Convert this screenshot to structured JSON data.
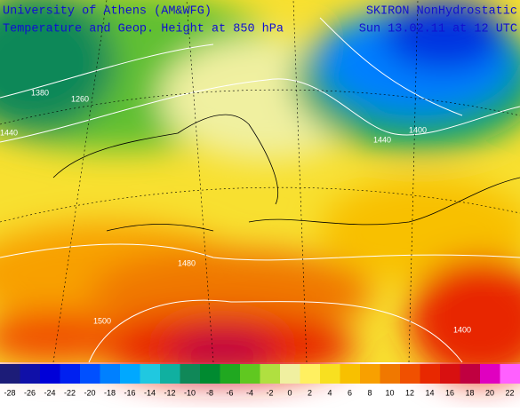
{
  "header": {
    "left_title": "University of Athens (AM&WFG)",
    "left_subtitle": "Temperature and Geop. Height at  850 hPa",
    "right_title": "SKIRON NonHydrostatic",
    "right_subtitle": "Sun 13.02.11 at 12 UTC"
  },
  "contour_labels": [
    "1380",
    "1260",
    "1440",
    "1400",
    "1440",
    "1480",
    "1500",
    "1400"
  ],
  "colorbar": {
    "labels": [
      -28,
      -26,
      -24,
      -22,
      -20,
      -18,
      -16,
      -14,
      -12,
      -10,
      -8,
      -6,
      -4,
      -2,
      0,
      2,
      4,
      6,
      8,
      10,
      12,
      14,
      16,
      18,
      20,
      22
    ],
    "colors": [
      "#1c1c78",
      "#1010a8",
      "#0000d8",
      "#0020f0",
      "#0050ff",
      "#0080ff",
      "#00a8ff",
      "#20c8e0",
      "#10b0a0",
      "#108858",
      "#008a30",
      "#20a820",
      "#60c820",
      "#b0e040",
      "#f0f0a0",
      "#fff060",
      "#f8e020",
      "#f8c000",
      "#f8a000",
      "#f07800",
      "#f05000",
      "#e82800",
      "#d81010",
      "#c00040",
      "#e000c0",
      "#ff60ff"
    ]
  }
}
